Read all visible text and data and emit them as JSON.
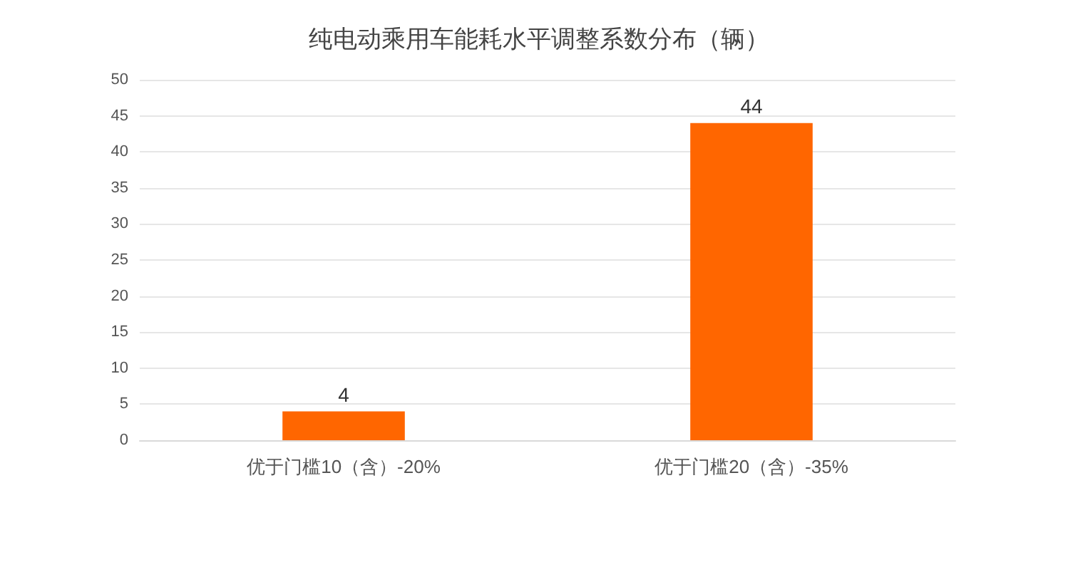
{
  "chart_data": {
    "type": "bar",
    "title": "纯电动乘用车能耗水平调整系数分布（辆）",
    "categories": [
      "优于门槛10（含）-20%",
      "优于门槛20（含）-35%"
    ],
    "values": [
      4,
      44
    ],
    "color": "#ff6600",
    "ylim": [
      0,
      50
    ],
    "yticks": [
      0,
      5,
      10,
      15,
      20,
      25,
      30,
      35,
      40,
      45,
      50
    ],
    "grid": "y",
    "data_labels": true
  }
}
